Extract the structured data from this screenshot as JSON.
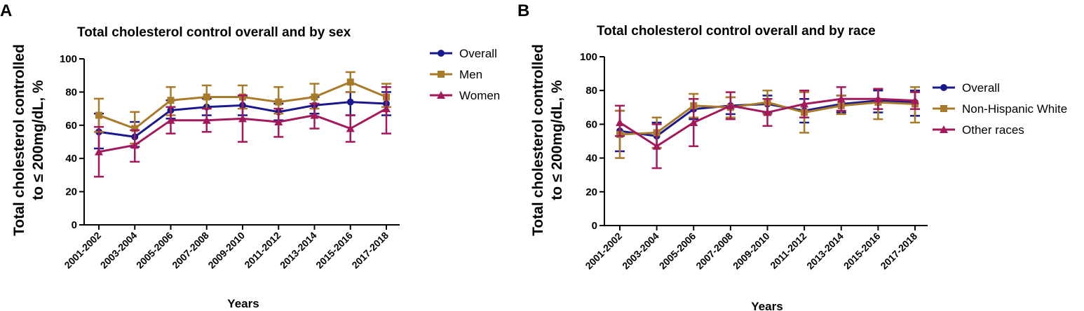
{
  "figure": {
    "panel_a_letter": "A",
    "panel_b_letter": "B"
  },
  "chart_data": [
    {
      "type": "line",
      "title": "Total cholesterol control overall and by sex",
      "xlabel": "Years",
      "ylabel_line1": "Total cholesterol controlled",
      "ylabel_line2": "to ≤ 200mg/dL, %",
      "ylim": [
        0,
        100
      ],
      "yticks": [
        "0",
        "20",
        "40",
        "60",
        "80",
        "100"
      ],
      "categories": [
        "2001-2002",
        "2003-2004",
        "2005-2006",
        "2007-2008",
        "2009-2010",
        "2011-2012",
        "2013-2014",
        "2015-2016",
        "2017-2018"
      ],
      "legend_position": "top-right",
      "series": [
        {
          "name": "Overall",
          "color": "#1a1a8c",
          "marker": "circle",
          "values": [
            56,
            53,
            69,
            71,
            72,
            68,
            72,
            74,
            73
          ],
          "err_low": [
            46,
            47,
            64,
            66,
            66,
            63,
            67,
            66,
            66
          ],
          "err_high": [
            67,
            62,
            75,
            76,
            77,
            73,
            77,
            80,
            80
          ]
        },
        {
          "name": "Men",
          "color": "#a87b2a",
          "marker": "square",
          "values": [
            66,
            58,
            75,
            77,
            77,
            74,
            77,
            86,
            77
          ],
          "err_low": [
            56,
            49,
            66,
            70,
            70,
            67,
            70,
            80,
            71
          ],
          "err_high": [
            76,
            68,
            83,
            84,
            84,
            83,
            85,
            92,
            85
          ]
        },
        {
          "name": "Women",
          "color": "#a3195b",
          "marker": "triangle",
          "values": [
            44,
            48,
            63,
            63,
            64,
            62,
            66,
            58,
            70
          ],
          "err_low": [
            29,
            38,
            55,
            56,
            50,
            53,
            58,
            50,
            55
          ],
          "err_high": [
            59,
            57,
            71,
            70,
            78,
            70,
            73,
            66,
            83
          ]
        }
      ]
    },
    {
      "type": "line",
      "title": "Total cholesterol control overall and by race",
      "xlabel": "Years",
      "ylabel_line1": "Total cholesterol controlled",
      "ylabel_line2": "to ≤ 200mg/dL, %",
      "ylim": [
        0,
        100
      ],
      "yticks": [
        "0",
        "20",
        "40",
        "60",
        "80",
        "100"
      ],
      "categories": [
        "2001-2002",
        "2003-2004",
        "2005-2006",
        "2007-2008",
        "2009-2010",
        "2011-2012",
        "2013-2014",
        "2015-2016",
        "2017-2018"
      ],
      "legend_position": "top-right",
      "series": [
        {
          "name": "Overall",
          "color": "#1a1a8c",
          "marker": "circle",
          "values": [
            56,
            53,
            69,
            71,
            72,
            68,
            72,
            74,
            73
          ],
          "err_low": [
            44,
            46,
            63,
            66,
            67,
            61,
            67,
            67,
            65
          ],
          "err_high": [
            68,
            61,
            75,
            76,
            77,
            75,
            77,
            80,
            80
          ]
        },
        {
          "name": "Non-Hispanic White",
          "color": "#a87b2a",
          "marker": "square",
          "values": [
            54,
            55,
            71,
            70,
            73,
            67,
            71,
            73,
            72
          ],
          "err_low": [
            40,
            46,
            64,
            64,
            66,
            55,
            66,
            63,
            61
          ],
          "err_high": [
            68,
            64,
            78,
            76,
            80,
            79,
            77,
            81,
            82
          ]
        },
        {
          "name": "Other races",
          "color": "#a3195b",
          "marker": "triangle",
          "values": [
            61,
            47,
            61,
            71,
            67,
            72,
            75,
            75,
            74
          ],
          "err_low": [
            53,
            34,
            47,
            63,
            59,
            64,
            68,
            69,
            69
          ],
          "err_high": [
            71,
            60,
            75,
            79,
            75,
            80,
            82,
            81,
            79
          ]
        }
      ]
    }
  ]
}
